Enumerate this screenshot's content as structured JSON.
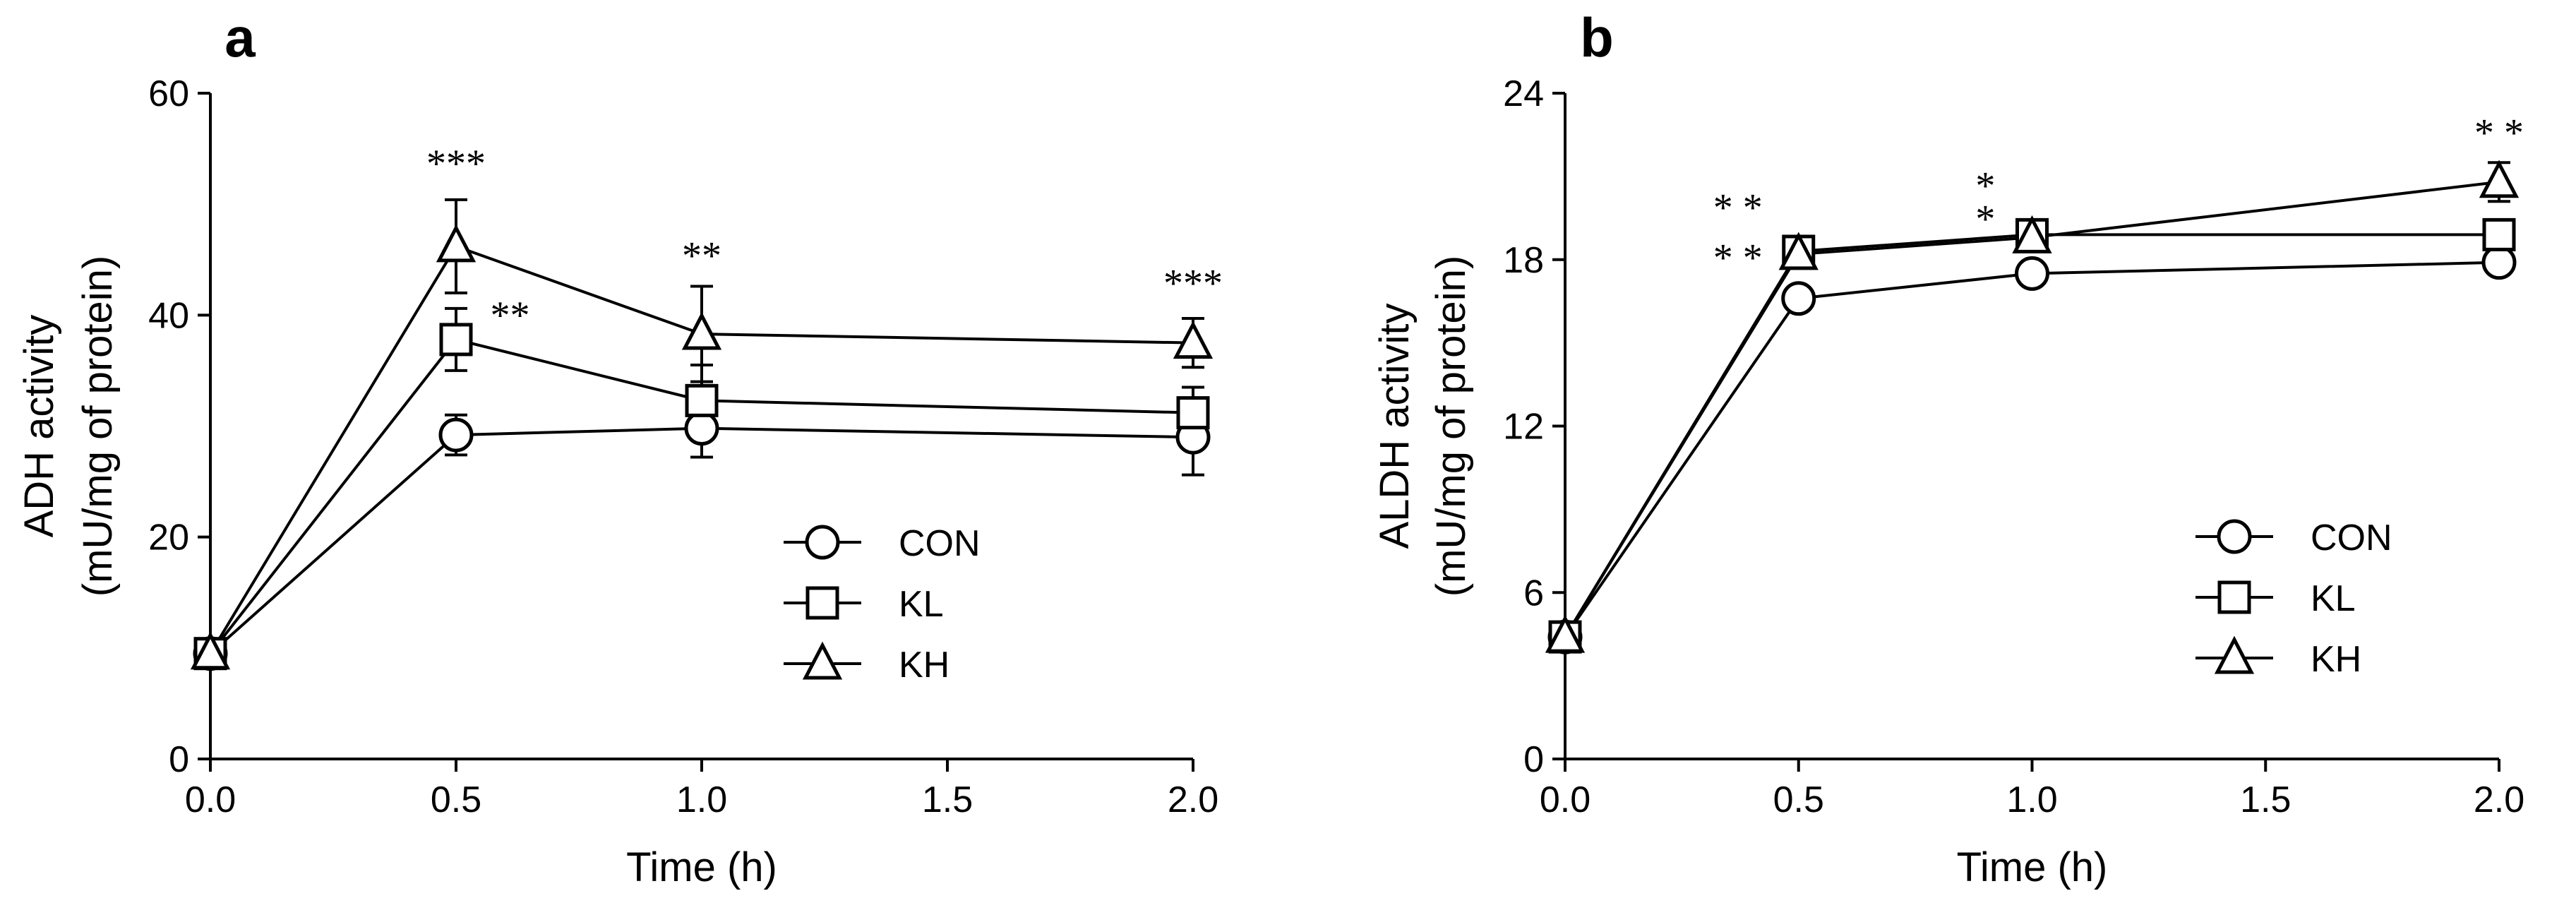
{
  "chart_data": [
    {
      "panel": "a",
      "type": "line",
      "xlabel": "Time (h)",
      "ylabel_line1": "ADH activity",
      "ylabel_line2": "(mU/mg of protein)",
      "xlim": [
        0,
        2.0
      ],
      "ylim": [
        0,
        60
      ],
      "xticks": [
        0,
        0.5,
        1.0,
        1.5,
        2.0
      ],
      "xtick_labels": [
        "0.0",
        "0.5",
        "1.0",
        "1.5",
        "2.0"
      ],
      "yticks": [
        0,
        20,
        40,
        60
      ],
      "ytick_labels": [
        "0",
        "20",
        "40",
        "60"
      ],
      "x": [
        0,
        0.5,
        1.0,
        2.0
      ],
      "legend_position": "bottom-right",
      "series": [
        {
          "name": "CON",
          "marker": "circle",
          "values": [
            9.5,
            29.2,
            29.8,
            29.0
          ],
          "errors": [
            0,
            1.8,
            2.6,
            3.4
          ]
        },
        {
          "name": "KL",
          "marker": "square",
          "values": [
            9.5,
            37.8,
            32.3,
            31.2
          ],
          "errors": [
            0,
            2.8,
            3.2,
            2.3
          ]
        },
        {
          "name": "KH",
          "marker": "triangle",
          "values": [
            9.5,
            46.2,
            38.3,
            37.5
          ],
          "errors": [
            0,
            4.2,
            4.3,
            2.2
          ]
        }
      ],
      "annotations": [
        {
          "text": "***",
          "x": 0.5,
          "y": 52.5
        },
        {
          "text": "**",
          "x": 0.61,
          "y": 38.8
        },
        {
          "text": "**",
          "x": 1.0,
          "y": 44.2
        },
        {
          "text": "***",
          "x": 2.0,
          "y": 41.7
        }
      ]
    },
    {
      "panel": "b",
      "type": "line",
      "xlabel": "Time (h)",
      "ylabel_line1": "ALDH activity",
      "ylabel_line2": "(mU/mg of protein)",
      "xlim": [
        0,
        2.0
      ],
      "ylim": [
        0,
        24
      ],
      "xticks": [
        0,
        0.5,
        1.0,
        1.5,
        2.0
      ],
      "xtick_labels": [
        "0.0",
        "0.5",
        "1.0",
        "1.5",
        "2.0"
      ],
      "yticks": [
        0,
        6,
        12,
        18,
        24
      ],
      "ytick_labels": [
        "0",
        "6",
        "12",
        "18",
        "24"
      ],
      "x": [
        0,
        0.5,
        1.0,
        2.0
      ],
      "legend_position": "bottom-right",
      "series": [
        {
          "name": "CON",
          "marker": "circle",
          "values": [
            4.4,
            16.6,
            17.5,
            17.9
          ],
          "errors": [
            0,
            0,
            0,
            0
          ]
        },
        {
          "name": "KL",
          "marker": "square",
          "values": [
            4.4,
            18.3,
            18.9,
            18.9
          ],
          "errors": [
            0,
            0,
            0,
            0
          ]
        },
        {
          "name": "KH",
          "marker": "triangle",
          "values": [
            4.4,
            18.2,
            18.8,
            20.8
          ],
          "errors": [
            0,
            0,
            0,
            0.7
          ]
        }
      ],
      "annotations": [
        {
          "text": "* *",
          "x": 0.37,
          "y": 19.4
        },
        {
          "text": "* *",
          "x": 0.37,
          "y": 17.6
        },
        {
          "text": "*",
          "x": 0.9,
          "y": 20.2
        },
        {
          "text": "*",
          "x": 0.9,
          "y": 19.0
        },
        {
          "text": "* *",
          "x": 2.0,
          "y": 22.1
        }
      ]
    }
  ]
}
